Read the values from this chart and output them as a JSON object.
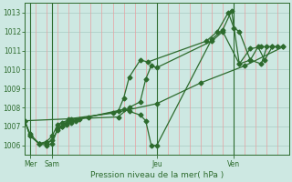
{
  "xlabel": "Pression niveau de la mer( hPa )",
  "background_color": "#cde8e2",
  "grid_color_h": "#aecfc8",
  "grid_color_v": "#e8a0a0",
  "line_color": "#2d6b2d",
  "tick_label_color": "#2d6b2d",
  "ylim": [
    1005.5,
    1013.5
  ],
  "yticks": [
    1006,
    1007,
    1008,
    1009,
    1010,
    1011,
    1012,
    1013
  ],
  "xlim": [
    0,
    24
  ],
  "day_positions": [
    0.5,
    2.5,
    12,
    19
  ],
  "day_labels": [
    "Mer",
    "Sam",
    "Jeu",
    "Ven"
  ],
  "vline_positions": [
    0.5,
    2.5,
    12,
    19
  ],
  "series1": {
    "x": [
      0.0,
      0.5,
      1.3,
      2.0,
      2.5,
      3.0,
      3.4,
      3.8,
      4.2,
      4.6,
      5.0,
      5.8,
      8.5,
      9.0,
      9.5,
      10.5,
      11.2,
      16.5,
      17.5,
      18.5,
      19.0,
      19.5,
      20.5,
      21.2,
      21.8,
      22.5,
      23.5
    ],
    "y": [
      1007.3,
      1006.6,
      1006.1,
      1006.0,
      1006.1,
      1006.9,
      1007.0,
      1007.1,
      1007.2,
      1007.3,
      1007.4,
      1007.5,
      1007.8,
      1008.5,
      1009.6,
      1010.5,
      1010.4,
      1011.5,
      1012.0,
      1013.0,
      1012.2,
      1012.0,
      1010.5,
      1011.2,
      1010.5,
      1011.2,
      1011.2
    ]
  },
  "series2": {
    "x": [
      0.0,
      0.5,
      1.3,
      2.0,
      2.5,
      3.0,
      3.4,
      3.8,
      4.2,
      9.0,
      9.5,
      10.5,
      11.0,
      11.5,
      12.0,
      17.0,
      18.0,
      18.8,
      19.5,
      20.5,
      21.5,
      22.5
    ],
    "y": [
      1007.3,
      1006.5,
      1006.1,
      1006.1,
      1006.3,
      1006.8,
      1007.0,
      1007.2,
      1007.3,
      1007.9,
      1007.8,
      1007.6,
      1007.3,
      1006.0,
      1006.0,
      1011.6,
      1012.1,
      1013.1,
      1010.3,
      1011.1,
      1011.2,
      1011.2
    ]
  },
  "series3": {
    "x": [
      0.0,
      0.5,
      1.3,
      2.0,
      2.5,
      3.0,
      3.4,
      4.2,
      8.5,
      9.5,
      10.5,
      11.0,
      11.5,
      12.0,
      17.0,
      18.0,
      19.5,
      20.5,
      21.5,
      22.0,
      23.0
    ],
    "y": [
      1007.3,
      1006.5,
      1006.1,
      1006.2,
      1006.5,
      1007.1,
      1007.2,
      1007.4,
      1007.5,
      1008.0,
      1008.3,
      1009.5,
      1010.2,
      1010.1,
      1011.5,
      1012.0,
      1010.3,
      1010.5,
      1010.3,
      1011.2,
      1011.2
    ]
  },
  "series4": {
    "x": [
      0.0,
      4.0,
      8.0,
      12.0,
      16.0,
      20.0,
      23.5
    ],
    "y": [
      1007.3,
      1007.4,
      1007.7,
      1008.2,
      1009.3,
      1010.2,
      1011.2
    ]
  }
}
